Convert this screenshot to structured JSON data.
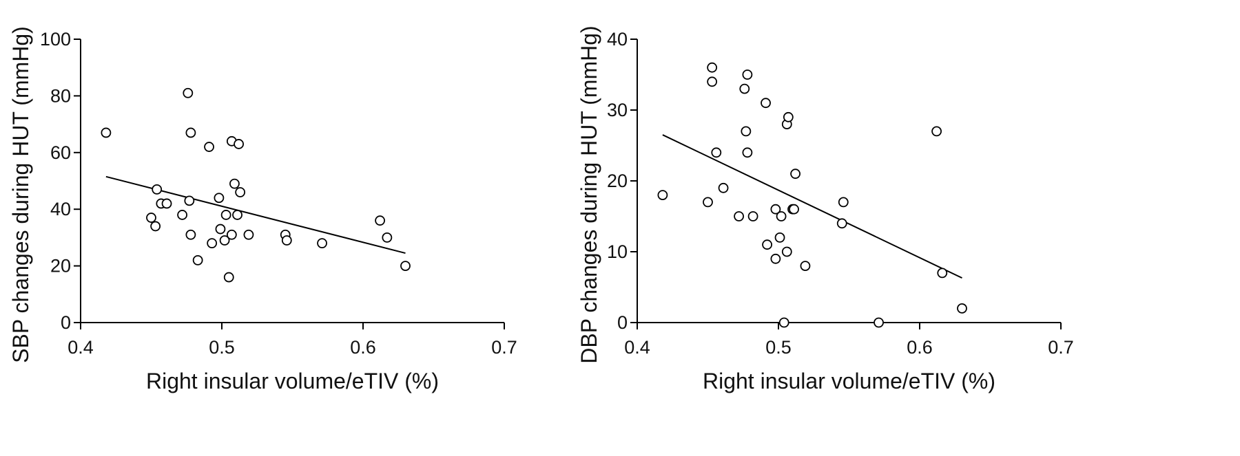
{
  "chart_data": [
    {
      "type": "scatter",
      "xlabel": "Right insular volume/eTIV (%)",
      "ylabel": "SBP changes during HUT (mmHg)",
      "xlim": [
        0.4,
        0.7
      ],
      "ylim": [
        0,
        100
      ],
      "xticks": [
        "0.4",
        "0.5",
        "0.6",
        "0.7"
      ],
      "yticks": [
        "0",
        "20",
        "40",
        "60",
        "80",
        "100"
      ],
      "points": [
        {
          "x": 0.418,
          "y": 67
        },
        {
          "x": 0.45,
          "y": 37
        },
        {
          "x": 0.453,
          "y": 34
        },
        {
          "x": 0.454,
          "y": 47
        },
        {
          "x": 0.457,
          "y": 42
        },
        {
          "x": 0.461,
          "y": 42
        },
        {
          "x": 0.472,
          "y": 38
        },
        {
          "x": 0.476,
          "y": 81
        },
        {
          "x": 0.477,
          "y": 43
        },
        {
          "x": 0.478,
          "y": 67
        },
        {
          "x": 0.478,
          "y": 31
        },
        {
          "x": 0.483,
          "y": 22
        },
        {
          "x": 0.491,
          "y": 62
        },
        {
          "x": 0.493,
          "y": 28
        },
        {
          "x": 0.498,
          "y": 44
        },
        {
          "x": 0.499,
          "y": 33
        },
        {
          "x": 0.502,
          "y": 29
        },
        {
          "x": 0.503,
          "y": 38
        },
        {
          "x": 0.505,
          "y": 16
        },
        {
          "x": 0.507,
          "y": 64
        },
        {
          "x": 0.507,
          "y": 31
        },
        {
          "x": 0.509,
          "y": 49
        },
        {
          "x": 0.511,
          "y": 38
        },
        {
          "x": 0.512,
          "y": 63
        },
        {
          "x": 0.513,
          "y": 46
        },
        {
          "x": 0.519,
          "y": 31
        },
        {
          "x": 0.545,
          "y": 31
        },
        {
          "x": 0.546,
          "y": 29
        },
        {
          "x": 0.571,
          "y": 28
        },
        {
          "x": 0.612,
          "y": 36
        },
        {
          "x": 0.617,
          "y": 30
        },
        {
          "x": 0.63,
          "y": 20
        }
      ],
      "fit_line": {
        "x": [
          0.418,
          0.63
        ],
        "y": [
          51.5,
          24.5
        ]
      }
    },
    {
      "type": "scatter",
      "xlabel": "Right insular volume/eTIV (%)",
      "ylabel": "DBP changes during HUT (mmHg)",
      "xlim": [
        0.4,
        0.7
      ],
      "ylim": [
        0,
        40
      ],
      "xticks": [
        "0.4",
        "0.5",
        "0.6",
        "0.7"
      ],
      "yticks": [
        "0",
        "10",
        "20",
        "30",
        "40"
      ],
      "points": [
        {
          "x": 0.418,
          "y": 18
        },
        {
          "x": 0.45,
          "y": 17
        },
        {
          "x": 0.453,
          "y": 36
        },
        {
          "x": 0.453,
          "y": 34
        },
        {
          "x": 0.456,
          "y": 24
        },
        {
          "x": 0.461,
          "y": 19
        },
        {
          "x": 0.472,
          "y": 15
        },
        {
          "x": 0.476,
          "y": 33
        },
        {
          "x": 0.477,
          "y": 27
        },
        {
          "x": 0.478,
          "y": 35
        },
        {
          "x": 0.478,
          "y": 24
        },
        {
          "x": 0.482,
          "y": 15
        },
        {
          "x": 0.491,
          "y": 31
        },
        {
          "x": 0.492,
          "y": 11
        },
        {
          "x": 0.498,
          "y": 16
        },
        {
          "x": 0.498,
          "y": 9
        },
        {
          "x": 0.501,
          "y": 12
        },
        {
          "x": 0.502,
          "y": 15
        },
        {
          "x": 0.504,
          "y": 0
        },
        {
          "x": 0.506,
          "y": 28
        },
        {
          "x": 0.506,
          "y": 10
        },
        {
          "x": 0.507,
          "y": 29
        },
        {
          "x": 0.51,
          "y": 16
        },
        {
          "x": 0.511,
          "y": 16
        },
        {
          "x": 0.512,
          "y": 21
        },
        {
          "x": 0.519,
          "y": 8
        },
        {
          "x": 0.545,
          "y": 14
        },
        {
          "x": 0.546,
          "y": 17
        },
        {
          "x": 0.571,
          "y": 0
        },
        {
          "x": 0.612,
          "y": 27
        },
        {
          "x": 0.616,
          "y": 7
        },
        {
          "x": 0.63,
          "y": 2
        }
      ],
      "fit_line": {
        "x": [
          0.418,
          0.63
        ],
        "y": [
          26.5,
          6.3
        ]
      }
    }
  ]
}
